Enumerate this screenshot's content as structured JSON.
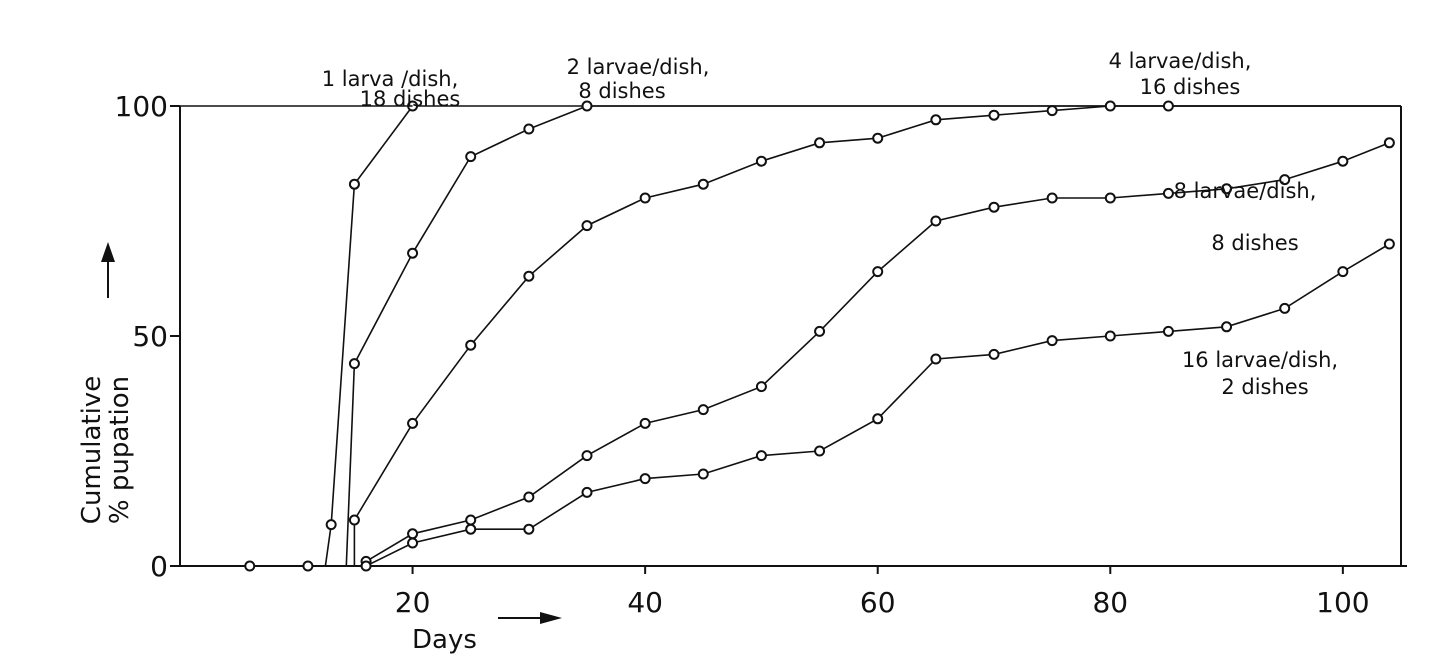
{
  "chart_data": {
    "type": "line",
    "title": "",
    "xlabel": "Days",
    "ylabel_line1": "Cumulative",
    "ylabel_line2": "% pupation",
    "xlim": [
      0,
      105
    ],
    "ylim": [
      0,
      100
    ],
    "x_ticks": [
      20,
      40,
      60,
      80,
      100
    ],
    "y_ticks": [
      0,
      50,
      100
    ],
    "grid": false,
    "baseline_points": [
      [
        6,
        0
      ],
      [
        11,
        0
      ]
    ],
    "series": [
      {
        "label_lines": [
          "1 larva /dish,",
          "18 dishes"
        ],
        "x": [
          13,
          15,
          20
        ],
        "y": [
          9,
          83,
          100
        ]
      },
      {
        "label_lines": [
          "2 larvae/dish,",
          "8 dishes"
        ],
        "x": [
          15,
          20,
          25,
          30,
          35
        ],
        "y": [
          44,
          68,
          89,
          95,
          100
        ]
      },
      {
        "label_lines": [
          "4 larvae/dish,",
          "16 dishes"
        ],
        "x": [
          15,
          20,
          25,
          30,
          35,
          40,
          45,
          50,
          55,
          60,
          65,
          70,
          75,
          80,
          85
        ],
        "y": [
          10,
          31,
          48,
          63,
          74,
          80,
          83,
          88,
          92,
          93,
          97,
          98,
          99,
          100,
          100
        ]
      },
      {
        "label_lines": [
          "8 larvae/dish,",
          "8 dishes"
        ],
        "x": [
          16,
          20,
          25,
          30,
          35,
          40,
          45,
          50,
          55,
          60,
          65,
          70,
          75,
          80,
          85,
          90,
          95,
          100,
          104
        ],
        "y": [
          1,
          7,
          10,
          15,
          24,
          31,
          34,
          39,
          51,
          64,
          75,
          78,
          80,
          80,
          81,
          82,
          84,
          88,
          92
        ]
      },
      {
        "label_lines": [
          "16 larvae/dish,",
          "2 dishes"
        ],
        "x": [
          16,
          20,
          25,
          30,
          35,
          40,
          45,
          50,
          55,
          60,
          65,
          70,
          75,
          80,
          85,
          90,
          95,
          100,
          104
        ],
        "y": [
          0,
          5,
          8,
          8,
          16,
          19,
          20,
          24,
          25,
          32,
          45,
          46,
          49,
          50,
          51,
          52,
          56,
          64,
          70
        ]
      }
    ]
  }
}
